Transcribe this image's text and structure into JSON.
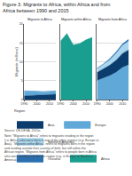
{
  "title": "Figure 3. Migrants to Africa, within Africa and from Africa between 1990 and 2015",
  "legend_title": "Region",
  "legend": "bottom",
  "source": "Source: UN DESA, 2015a.",
  "notes": "Note: \"Migrants to Africa\" refers to migrants residing in the region (i.e. Africa) who were born in one of the other regions (e.g. Europe or Asia). \"Migrants within Africa\" refers to migrants born in the region and residing outside their country of birth, but still within the African region. \"Migrants from Africa\" refers to people born in Africa who were residing outside the region (e.g. in Europe or Northern America).",
  "chart_data": [
    {
      "type": "area",
      "title": "Migrants to Africa",
      "y_label": "Migrants (millions)",
      "stacked": true,
      "grid": true,
      "x": [
        1990,
        1995,
        2000,
        2005,
        2010,
        2015
      ],
      "xlim": [
        1990,
        2015
      ],
      "xticks": [
        1990,
        2000,
        2010
      ],
      "ylim": [
        0,
        20
      ],
      "yticks": [
        0,
        5,
        10,
        15,
        20
      ],
      "series": [
        {
          "name": "Asia",
          "color": "#0b3c6e",
          "values": [
            1.0,
            1.1,
            1.2,
            1.2,
            1.3,
            1.4
          ]
        },
        {
          "name": "Europe",
          "color": "#5fa8d8",
          "values": [
            1.2,
            1.1,
            0.9,
            0.8,
            0.8,
            0.8
          ]
        },
        {
          "name": "Northern America",
          "color": "#a9d6ee",
          "values": [
            0.1,
            0.1,
            0.1,
            0.1,
            0.1,
            0.1
          ]
        },
        {
          "name": "Oceania",
          "color": "#2a6fb0",
          "values": [
            0.0,
            0.0,
            0.0,
            0.0,
            0.0,
            0.0
          ]
        }
      ]
    },
    {
      "type": "area",
      "title": "Migrants within Africa",
      "stacked": true,
      "grid": true,
      "tick_labels": "x",
      "x": [
        1990,
        1995,
        2000,
        2005,
        2010,
        2015
      ],
      "xlim": [
        1990,
        2015
      ],
      "xticks": [
        1990,
        2000,
        2010
      ],
      "ylim": [
        0,
        20
      ],
      "yticks": [
        0,
        5,
        10,
        15,
        20
      ],
      "series": [
        {
          "name": "Africa",
          "color": "#1a9e8f",
          "values": [
            15.5,
            17.5,
            14.5,
            14.8,
            15.8,
            16.5
          ]
        }
      ]
    },
    {
      "type": "area",
      "title": "Migrants from Africa",
      "stacked": true,
      "grid": true,
      "tick_labels": "x",
      "x": [
        1990,
        1995,
        2000,
        2005,
        2010,
        2015
      ],
      "xlim": [
        1990,
        2015
      ],
      "xticks": [
        1990,
        2000,
        2010
      ],
      "ylim": [
        0,
        20
      ],
      "yticks": [
        0,
        5,
        10,
        15,
        20
      ],
      "series": [
        {
          "name": "Europe",
          "color": "#5fa8d8",
          "values": [
            5.0,
            5.6,
            6.3,
            7.2,
            8.5,
            9.2
          ]
        },
        {
          "name": "Asia",
          "color": "#0b3c6e",
          "values": [
            2.2,
            2.5,
            2.8,
            3.2,
            3.7,
            4.0
          ]
        },
        {
          "name": "Northern America",
          "color": "#a9d6ee",
          "values": [
            0.9,
            1.1,
            1.4,
            1.8,
            2.1,
            2.3
          ]
        },
        {
          "name": "Oceania",
          "color": "#2a6fb0",
          "values": [
            0.2,
            0.2,
            0.3,
            0.4,
            0.4,
            0.5
          ]
        }
      ]
    }
  ]
}
